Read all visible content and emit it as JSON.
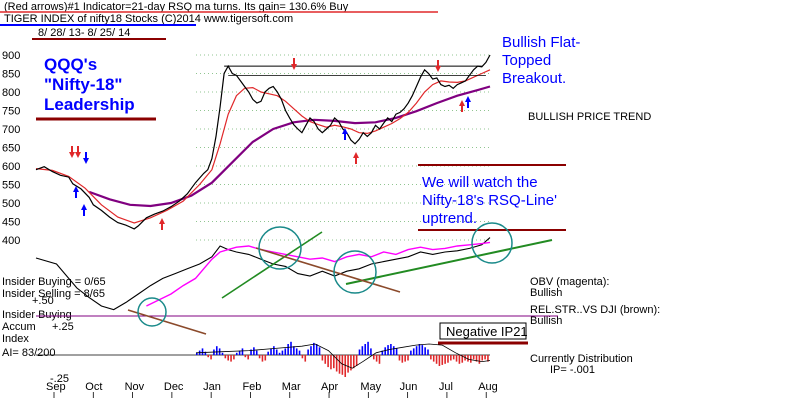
{
  "header": {
    "line1": "(Red arrows)#1 Indicator=21-day RSQ ma turns. Its gain= 130.6% Buy",
    "line2": "TIGER INDEX of       nifty18 Stocks  (C)2014    www.tigersoft.com",
    "date_range": "8/ 28/ 13- 8/ 25/ 14"
  },
  "annotations": {
    "title": [
      "QQQ's",
      "\"Nifty-18\"",
      "Leadership"
    ],
    "breakout": [
      "Bullish Flat-",
      "Topped",
      "Breakout."
    ],
    "trend": "BULLISH PRICE TREND",
    "watch": [
      "We will watch the",
      "Nifty-18's RSQ-Line'",
      "uptrend."
    ],
    "obv": [
      "OBV (magenta):",
      "Bullish"
    ],
    "relstr": [
      "REL.STR..VS DJI (brown):",
      "Bullish"
    ],
    "negative_ip21": "Negative IP21",
    "distribution": [
      "Currently Distribution",
      "IP= -.001"
    ]
  },
  "left_labels": {
    "insider_buying_count": "Insider Buying = 0/65",
    "insider_selling_count": "Insider Selling = 8/65",
    "plus50": "+.50",
    "insider_buying": "Insider Buying",
    "accum": "Accum",
    "plus25": "+.25",
    "index": "Index",
    "ai": "AI= 83/200",
    "minus25": "-.25"
  },
  "chart_data": {
    "type": "line",
    "y_ticks": [
      "900",
      "850",
      "800",
      "750",
      "700",
      "650",
      "600",
      "550",
      "500",
      "450",
      "400"
    ],
    "ylim": [
      375,
      925
    ],
    "months": [
      "Sep",
      "Oct",
      "Nov",
      "Dec",
      "Jan",
      "Feb",
      "Mar",
      "Apr",
      "May",
      "Jun",
      "Jul",
      "Aug"
    ],
    "price": [
      [
        0,
        590
      ],
      [
        4,
        598
      ],
      [
        8,
        585
      ],
      [
        12,
        575
      ],
      [
        16,
        570
      ],
      [
        18,
        552
      ],
      [
        22,
        538
      ],
      [
        26,
        515
      ],
      [
        28,
        495
      ],
      [
        32,
        480
      ],
      [
        36,
        462
      ],
      [
        40,
        447
      ],
      [
        44,
        440
      ],
      [
        48,
        430
      ],
      [
        50,
        438
      ],
      [
        54,
        460
      ],
      [
        58,
        470
      ],
      [
        62,
        478
      ],
      [
        66,
        490
      ],
      [
        70,
        505
      ],
      [
        74,
        525
      ],
      [
        78,
        555
      ],
      [
        82,
        580
      ],
      [
        84,
        590
      ],
      [
        86,
        620
      ],
      [
        88,
        680
      ],
      [
        90,
        760
      ],
      [
        92,
        850
      ],
      [
        94,
        870
      ],
      [
        96,
        850
      ],
      [
        98,
        845
      ],
      [
        100,
        830
      ],
      [
        102,
        815
      ],
      [
        104,
        800
      ],
      [
        106,
        780
      ],
      [
        108,
        770
      ],
      [
        110,
        775
      ],
      [
        112,
        800
      ],
      [
        114,
        810
      ],
      [
        116,
        815
      ],
      [
        118,
        800
      ],
      [
        120,
        780
      ],
      [
        122,
        750
      ],
      [
        124,
        730
      ],
      [
        126,
        712
      ],
      [
        128,
        700
      ],
      [
        130,
        690
      ],
      [
        132,
        710
      ],
      [
        134,
        730
      ],
      [
        136,
        720
      ],
      [
        138,
        700
      ],
      [
        140,
        690
      ],
      [
        142,
        700
      ],
      [
        144,
        710
      ],
      [
        146,
        730
      ],
      [
        148,
        720
      ],
      [
        150,
        700
      ],
      [
        152,
        690
      ],
      [
        154,
        670
      ],
      [
        156,
        660
      ],
      [
        158,
        672
      ],
      [
        160,
        690
      ],
      [
        162,
        680
      ],
      [
        164,
        690
      ],
      [
        166,
        710
      ],
      [
        168,
        700
      ],
      [
        170,
        716
      ],
      [
        172,
        730
      ],
      [
        174,
        720
      ],
      [
        176,
        740
      ],
      [
        178,
        745
      ],
      [
        180,
        755
      ],
      [
        182,
        770
      ],
      [
        184,
        790
      ],
      [
        186,
        815
      ],
      [
        188,
        840
      ],
      [
        190,
        860
      ],
      [
        192,
        850
      ],
      [
        194,
        835
      ],
      [
        196,
        838
      ],
      [
        198,
        820
      ],
      [
        200,
        815
      ],
      [
        202,
        818
      ],
      [
        204,
        810
      ],
      [
        206,
        820
      ],
      [
        208,
        825
      ],
      [
        210,
        830
      ],
      [
        212,
        845
      ],
      [
        214,
        860
      ],
      [
        216,
        870
      ],
      [
        218,
        868
      ],
      [
        220,
        880
      ],
      [
        222,
        900
      ]
    ],
    "ma_red": [
      [
        0,
        593
      ],
      [
        8,
        588
      ],
      [
        16,
        572
      ],
      [
        24,
        540
      ],
      [
        32,
        495
      ],
      [
        40,
        462
      ],
      [
        48,
        446
      ],
      [
        56,
        460
      ],
      [
        64,
        480
      ],
      [
        72,
        505
      ],
      [
        80,
        550
      ],
      [
        86,
        590
      ],
      [
        90,
        660
      ],
      [
        94,
        740
      ],
      [
        98,
        790
      ],
      [
        102,
        810
      ],
      [
        106,
        812
      ],
      [
        110,
        800
      ],
      [
        114,
        795
      ],
      [
        118,
        790
      ],
      [
        122,
        775
      ],
      [
        126,
        755
      ],
      [
        130,
        735
      ],
      [
        134,
        720
      ],
      [
        138,
        712
      ],
      [
        142,
        705
      ],
      [
        146,
        710
      ],
      [
        150,
        706
      ],
      [
        154,
        700
      ],
      [
        158,
        690
      ],
      [
        162,
        688
      ],
      [
        166,
        695
      ],
      [
        170,
        705
      ],
      [
        174,
        715
      ],
      [
        178,
        728
      ],
      [
        182,
        745
      ],
      [
        186,
        770
      ],
      [
        190,
        800
      ],
      [
        194,
        820
      ],
      [
        198,
        830
      ],
      [
        202,
        827
      ],
      [
        206,
        826
      ],
      [
        210,
        830
      ],
      [
        214,
        840
      ],
      [
        218,
        850
      ],
      [
        222,
        860
      ]
    ],
    "ma_purple": [
      [
        26,
        530
      ],
      [
        36,
        510
      ],
      [
        46,
        495
      ],
      [
        56,
        492
      ],
      [
        66,
        500
      ],
      [
        76,
        520
      ],
      [
        86,
        555
      ],
      [
        96,
        610
      ],
      [
        106,
        665
      ],
      [
        116,
        700
      ],
      [
        126,
        718
      ],
      [
        136,
        725
      ],
      [
        146,
        722
      ],
      [
        156,
        716
      ],
      [
        166,
        718
      ],
      [
        176,
        730
      ],
      [
        186,
        748
      ],
      [
        196,
        770
      ],
      [
        206,
        790
      ],
      [
        216,
        805
      ],
      [
        222,
        815
      ]
    ],
    "obv": [
      [
        54,
        -0.05
      ],
      [
        60,
        0.0
      ],
      [
        66,
        0.05
      ],
      [
        72,
        0.12
      ],
      [
        78,
        0.18
      ],
      [
        82,
        0.26
      ],
      [
        86,
        0.34
      ],
      [
        90,
        0.4
      ],
      [
        94,
        0.42
      ],
      [
        98,
        0.44
      ],
      [
        104,
        0.45
      ],
      [
        110,
        0.42
      ],
      [
        116,
        0.4
      ],
      [
        122,
        0.38
      ],
      [
        128,
        0.36
      ],
      [
        134,
        0.34
      ],
      [
        140,
        0.35
      ],
      [
        146,
        0.32
      ],
      [
        152,
        0.36
      ],
      [
        158,
        0.38
      ],
      [
        164,
        0.36
      ],
      [
        170,
        0.4
      ],
      [
        176,
        0.38
      ],
      [
        182,
        0.42
      ],
      [
        188,
        0.44
      ],
      [
        194,
        0.42
      ],
      [
        200,
        0.43
      ],
      [
        206,
        0.45
      ],
      [
        212,
        0.46
      ],
      [
        218,
        0.47
      ],
      [
        222,
        0.48
      ]
    ],
    "relstr": [
      [
        0,
        0.35
      ],
      [
        10,
        0.3
      ],
      [
        20,
        0.1
      ],
      [
        26,
        0.02
      ],
      [
        32,
        -0.05
      ],
      [
        38,
        -0.08
      ],
      [
        44,
        -0.02
      ],
      [
        50,
        0.05
      ],
      [
        56,
        0.12
      ],
      [
        62,
        0.18
      ],
      [
        68,
        0.22
      ],
      [
        74,
        0.26
      ],
      [
        80,
        0.3
      ],
      [
        86,
        0.36
      ],
      [
        90,
        0.45
      ],
      [
        94,
        0.42
      ],
      [
        98,
        0.4
      ],
      [
        104,
        0.38
      ],
      [
        110,
        0.34
      ],
      [
        116,
        0.3
      ],
      [
        122,
        0.28
      ],
      [
        128,
        0.22
      ],
      [
        134,
        0.2
      ],
      [
        140,
        0.24
      ],
      [
        146,
        0.2
      ],
      [
        152,
        0.24
      ],
      [
        158,
        0.26
      ],
      [
        164,
        0.3
      ],
      [
        170,
        0.32
      ],
      [
        176,
        0.34
      ],
      [
        182,
        0.36
      ],
      [
        188,
        0.4
      ],
      [
        194,
        0.38
      ],
      [
        200,
        0.4
      ],
      [
        206,
        0.41
      ],
      [
        212,
        0.43
      ],
      [
        218,
        0.46
      ],
      [
        222,
        0.52
      ]
    ],
    "ai_bars": [
      0.02,
      0.04,
      0.06,
      0.03,
      -0.02,
      -0.04,
      0.05,
      0.08,
      0.06,
      0.02,
      -0.03,
      -0.05,
      -0.06,
      -0.04,
      0.02,
      0.04,
      0.06,
      -0.02,
      -0.04,
      0.05,
      0.07,
      0.04,
      -0.03,
      -0.06,
      -0.05,
      0.03,
      0.06,
      0.08,
      0.05,
      0.02,
      0.04,
      0.06,
      0.1,
      0.12,
      0.08,
      0.06,
      0.04,
      -0.03,
      -0.06,
      0.05,
      0.08,
      0.11,
      0.1,
      0.07,
      -0.05,
      -0.08,
      -0.11,
      -0.13,
      -0.12,
      -0.15,
      -0.17,
      -0.18,
      -0.2,
      -0.16,
      -0.14,
      -0.12,
      -0.1,
      0.05,
      0.08,
      0.1,
      0.12,
      0.06,
      -0.04,
      -0.06,
      -0.08,
      0.04,
      0.07,
      0.09,
      0.1,
      0.08,
      0.06,
      -0.05,
      -0.07,
      -0.06,
      -0.05,
      0.04,
      0.06,
      0.08,
      0.1,
      0.09,
      0.07,
      0.05,
      -0.04,
      -0.06,
      -0.08,
      -0.1,
      -0.09,
      -0.08,
      -0.07,
      -0.05,
      -0.04,
      -0.06,
      -0.08,
      -0.07,
      -0.05,
      -0.06,
      -0.07,
      -0.04,
      -0.06,
      -0.08,
      -0.05,
      -0.04,
      -0.06
    ],
    "ai_ma": [
      [
        0,
        0.02
      ],
      [
        20,
        0.03
      ],
      [
        40,
        0.04
      ],
      [
        60,
        0.06
      ],
      [
        80,
        0.08
      ],
      [
        90,
        0.1
      ],
      [
        100,
        0.04
      ],
      [
        110,
        -0.08
      ],
      [
        118,
        -0.12
      ],
      [
        126,
        -0.06
      ],
      [
        136,
        0.02
      ],
      [
        146,
        0.05
      ],
      [
        156,
        0.07
      ],
      [
        166,
        0.09
      ],
      [
        176,
        0.1
      ],
      [
        186,
        0.09
      ],
      [
        196,
        0.02
      ],
      [
        206,
        -0.04
      ],
      [
        216,
        -0.06
      ],
      [
        222,
        -0.05
      ]
    ],
    "colors": {
      "price": "#000000",
      "ma_red": "#e0282a",
      "ma_purple": "#800080",
      "obv": "#ff00ff",
      "relstr": "#8b4a2b",
      "trendline": "#228b22",
      "circle": "#1a8a8a",
      "blue_text": "#0000ff",
      "red_rule": "#8b0000",
      "grid": "#228b22",
      "ai_pos": "#0000ff",
      "ai_neg": "#e0282a"
    }
  }
}
